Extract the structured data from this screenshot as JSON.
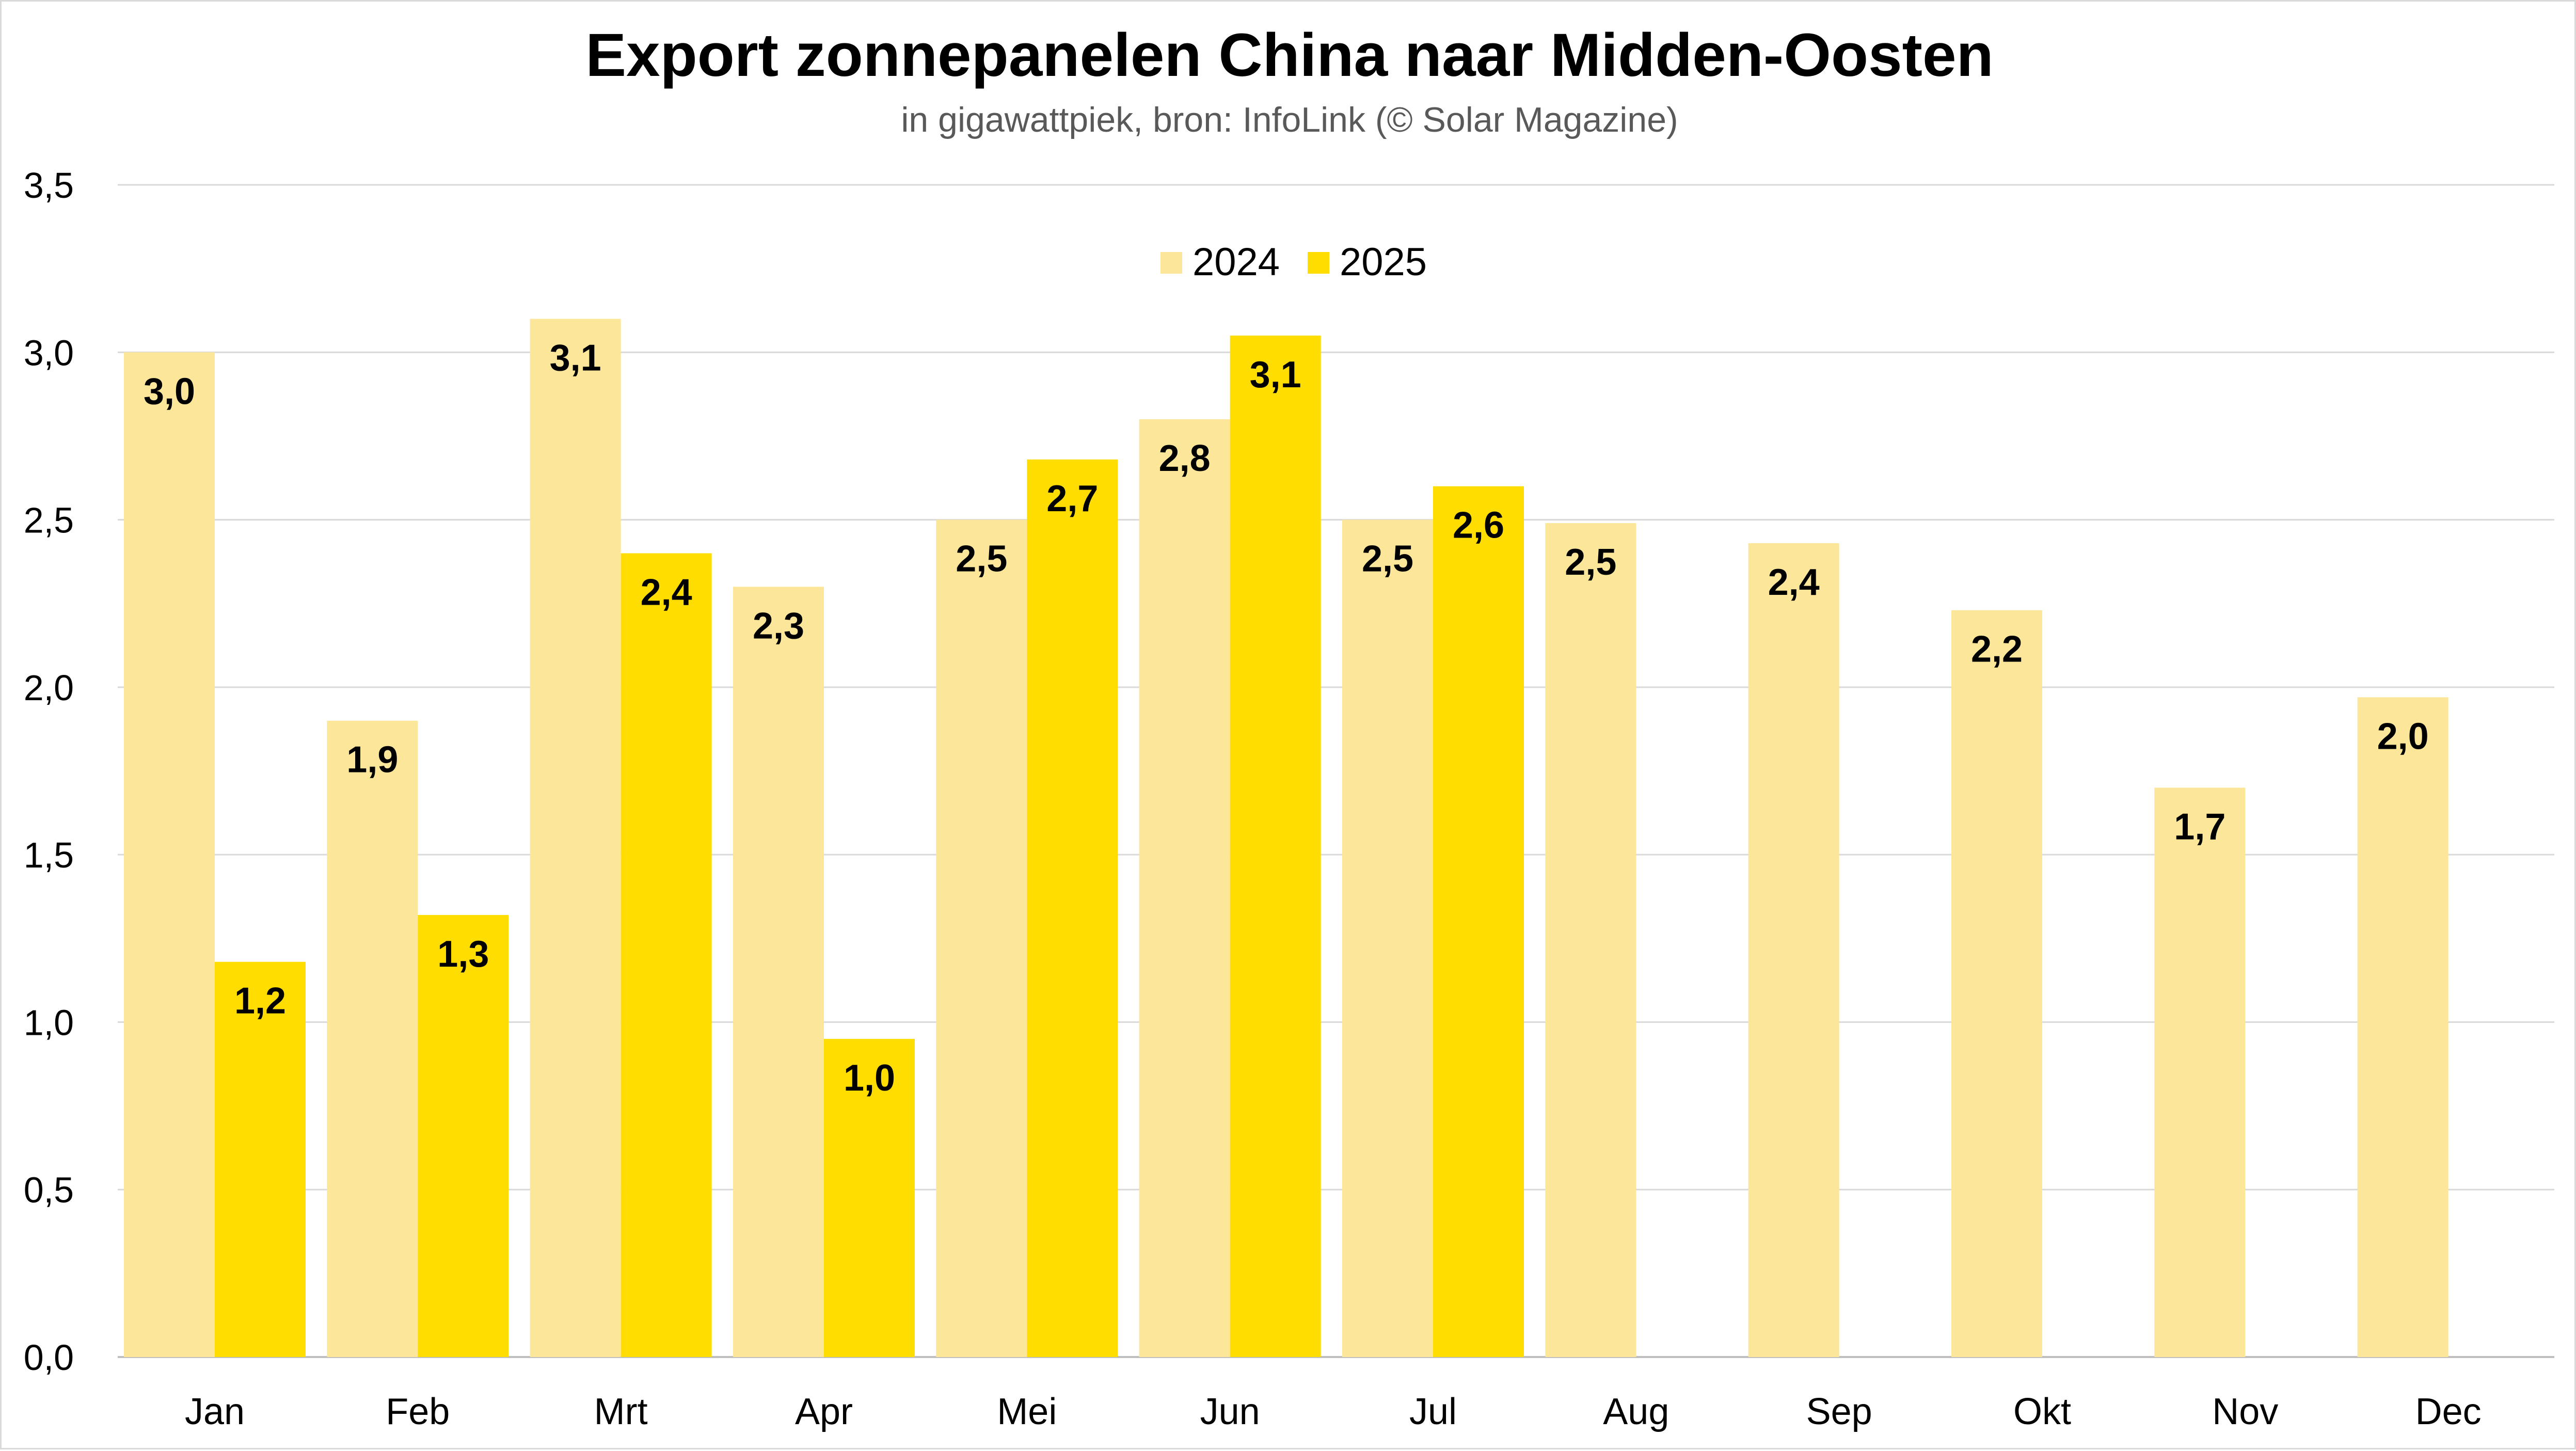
{
  "chart_data": {
    "type": "bar",
    "title": "Export zonnepanelen China naar Midden-Oosten",
    "subtitle": "in gigawattpiek, bron: InfoLink (© Solar Magazine)",
    "categories": [
      "Jan",
      "Feb",
      "Mrt",
      "Apr",
      "Mei",
      "Jun",
      "Jul",
      "Aug",
      "Sep",
      "Okt",
      "Nov",
      "Dec"
    ],
    "series": [
      {
        "name": "2024",
        "color": "#fce699",
        "values": [
          3.0,
          1.9,
          3.1,
          2.3,
          2.5,
          2.8,
          2.5,
          2.49,
          2.43,
          2.23,
          1.7,
          1.97
        ],
        "labels": [
          "3,0",
          "1,9",
          "3,1",
          "2,3",
          "2,5",
          "2,8",
          "2,5",
          "2,5",
          "2,4",
          "2,2",
          "1,7",
          "2,0"
        ]
      },
      {
        "name": "2025",
        "color": "#ffdd00",
        "values": [
          1.18,
          1.32,
          2.4,
          0.95,
          2.68,
          3.05,
          2.6,
          null,
          null,
          null,
          null,
          null
        ],
        "labels": [
          "1,2",
          "1,3",
          "2,4",
          "1,0",
          "2,7",
          "3,1",
          "2,6",
          null,
          null,
          null,
          null,
          null
        ]
      }
    ],
    "ylim": [
      0,
      3.5
    ],
    "yticks": [
      "0,0",
      "0,5",
      "1,0",
      "1,5",
      "2,0",
      "2,5",
      "3,0",
      "3,5"
    ],
    "xlabel": "",
    "ylabel": "",
    "grid": true,
    "legend_position": "top-center"
  }
}
